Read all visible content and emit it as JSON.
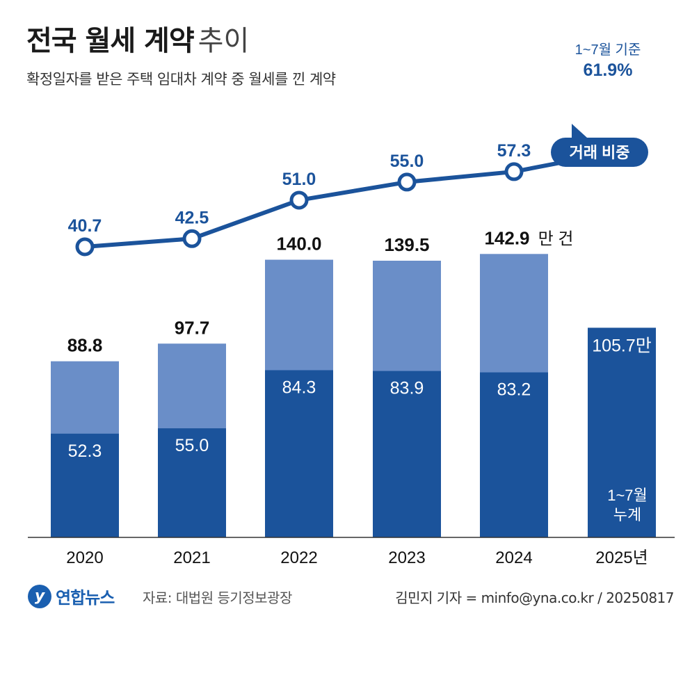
{
  "title": {
    "bold": "전국 월세 계약",
    "light": "추이"
  },
  "subtitle": "확정일자를 받은 주택 임대차 계약 중 월세를 낀 계약",
  "chart_data": {
    "type": "bar",
    "categories": [
      "2020",
      "2021",
      "2022",
      "2023",
      "2024",
      "2025년"
    ],
    "series": [
      {
        "values": [
          88.8,
          97.7,
          140.0,
          139.5,
          142.9,
          105.7
        ]
      },
      {
        "values": [
          52.3,
          55.0,
          84.3,
          83.9,
          83.2,
          null
        ]
      }
    ],
    "line_series": {
      "values": [
        40.7,
        42.5,
        51.0,
        55.0,
        57.3,
        61.9
      ]
    },
    "total_labels": [
      "88.8",
      "97.7",
      "140.0",
      "139.5",
      "142.9",
      "105.7만"
    ],
    "part_labels": [
      "52.3",
      "55.0",
      "84.3",
      "83.9",
      "83.2",
      ""
    ],
    "line_labels": [
      "40.7",
      "42.5",
      "51.0",
      "55.0",
      "57.3",
      "61.9%"
    ],
    "unit_label": "만 건",
    "line_note": "1~7월 기준",
    "callout": "거래 비중",
    "last_bar_note": [
      "1~7월",
      "누계"
    ],
    "colors": {
      "total": "#6a8ec8",
      "part": "#1b539b",
      "line": "#1b539b",
      "callout_bg": "#1b539b"
    }
  },
  "footer": {
    "logo_mark": "y",
    "logo_text": "연합뉴스",
    "source": "자료: 대법원 등기정보광장",
    "credit": "김민지 기자 = minfo@yna.co.kr / 20250817"
  }
}
